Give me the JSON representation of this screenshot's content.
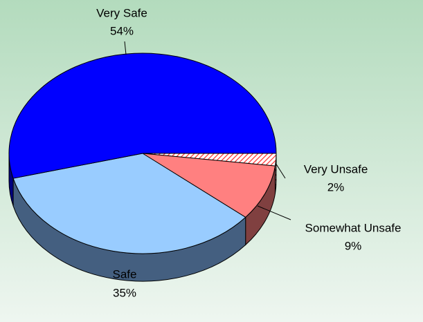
{
  "chart_data": {
    "type": "pie",
    "categories": [
      "Very Unsafe",
      "Somewhat Unsafe",
      "Safe",
      "Very Safe"
    ],
    "values": [
      2,
      9,
      35,
      54
    ],
    "value_labels": [
      "2%",
      "9%",
      "35%",
      "54%"
    ],
    "colors": [
      "#ff6060",
      "#ff8080",
      "#99ccff",
      "#0000ff"
    ],
    "side_colors": [
      "#a04040",
      "#804040",
      "#445f80",
      "#000080"
    ]
  }
}
